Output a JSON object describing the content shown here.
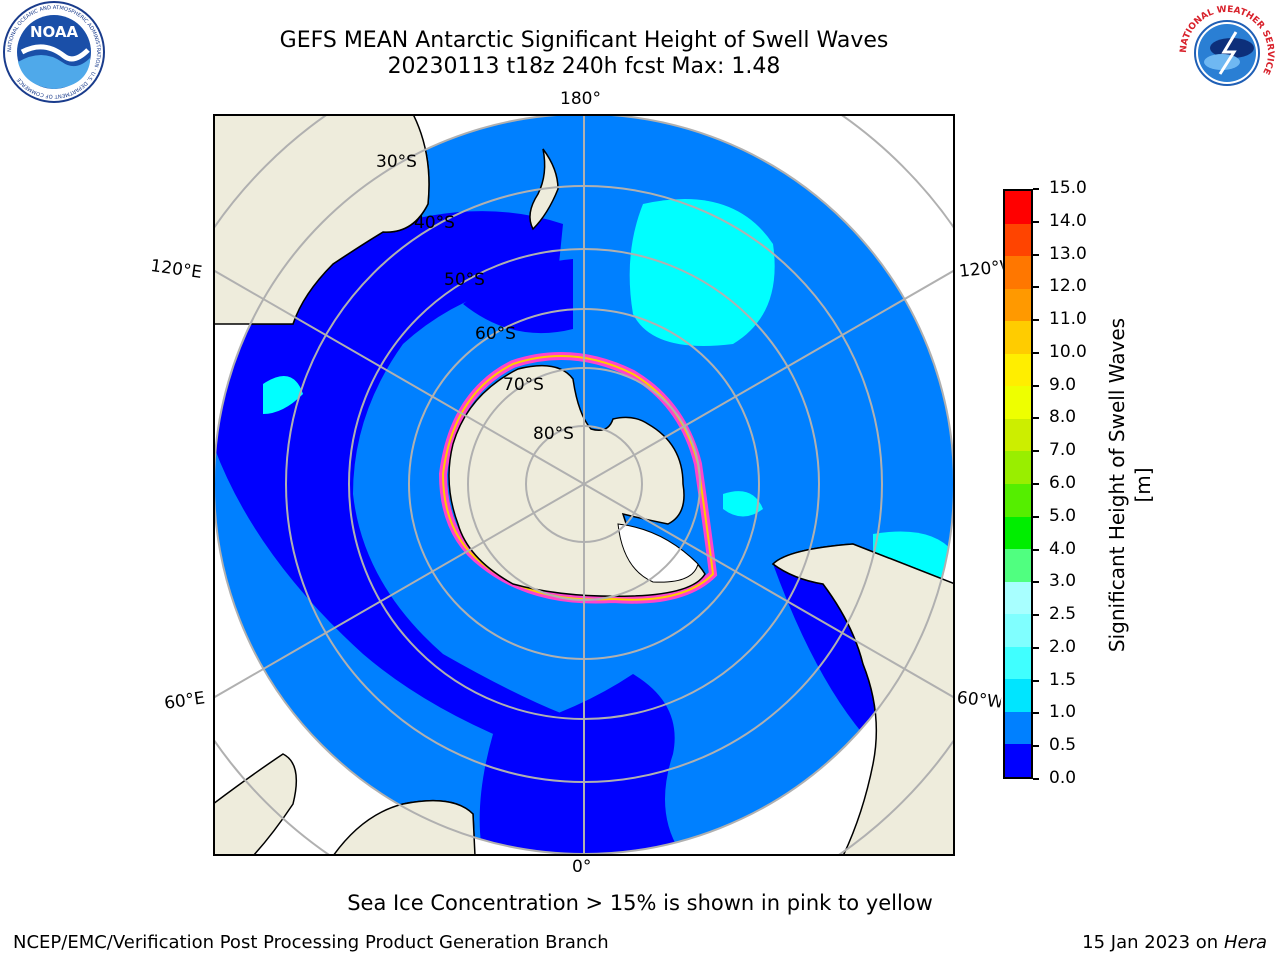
{
  "header": {
    "title_line1": "GEFS MEAN Antarctic Significant Height of Swell Waves",
    "title_line2": "20230113 t18z 240h fcst   Max: 1.48"
  },
  "logos": {
    "left": "noaa-logo",
    "left_text": "NOAA",
    "left_ring_text": "NATIONAL OCEANIC AND ATMOSPHERIC ADMINISTRATION · U.S. DEPARTMENT OF COMMERCE",
    "right": "national-weather-service-logo",
    "right_ring_text": "NATIONAL WEATHER SERVICE"
  },
  "map": {
    "projection": "south-polar-stereographic",
    "longitude_labels": {
      "top": "180°",
      "bottom": "0°",
      "left_upper": "120°E",
      "left_lower": "60°E",
      "right_upper": "120°W",
      "right_lower": "60°W"
    },
    "latitude_labels": [
      "30°S",
      "40°S",
      "50°S",
      "60°S",
      "70°S",
      "80°S"
    ],
    "colors": {
      "ocean_low": "#0000ff",
      "ocean_mid": "#0080ff",
      "ocean_high": "#00ffff",
      "land": "#eeecdc",
      "sea_ice": "#ff44cc",
      "grid": "#b0b0b0"
    }
  },
  "colorbar": {
    "label": "Significant Height of Swell Waves [m]",
    "ticks": [
      "0.0",
      "0.5",
      "1.0",
      "1.5",
      "2.0",
      "2.5",
      "3.0",
      "4.0",
      "5.0",
      "6.0",
      "7.0",
      "8.0",
      "9.0",
      "10.0",
      "11.0",
      "12.0",
      "13.0",
      "14.0",
      "15.0"
    ],
    "colors": [
      "#0000ff",
      "#0080ff",
      "#00e5ff",
      "#40ffff",
      "#80ffff",
      "#a8ffff",
      "#50ff80",
      "#00ee00",
      "#55ee00",
      "#99ee00",
      "#ccee00",
      "#eeff00",
      "#ffee00",
      "#ffcc00",
      "#ff9900",
      "#ff7700",
      "#ff4400",
      "#ff0000"
    ]
  },
  "footer": {
    "note": "Sea Ice Concentration > 15% is shown in pink to yellow",
    "credit": "NCEP/EMC/Verification Post Processing Product Generation Branch",
    "date": "15 Jan 2023 on ",
    "machine": "Hera"
  }
}
